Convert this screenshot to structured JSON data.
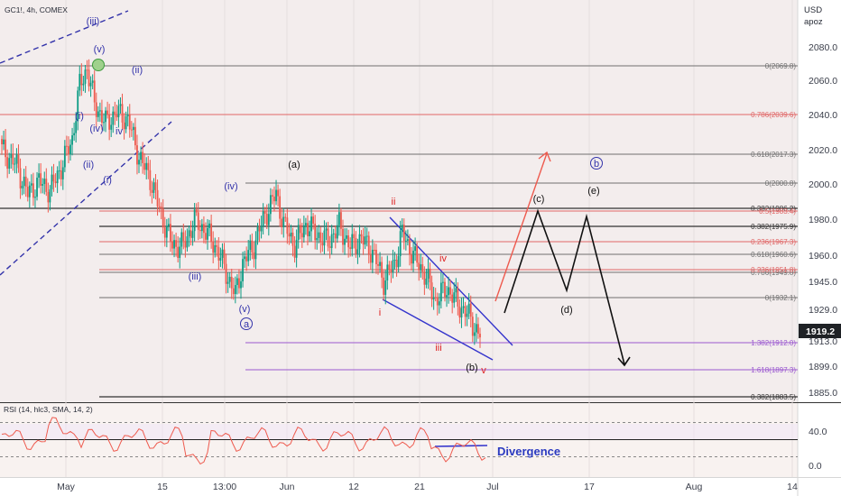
{
  "header": {
    "symbol": "GC1!, 4h, COMEX"
  },
  "scale": {
    "currency": "USD",
    "mode": "apoz"
  },
  "price_tag": {
    "value": "1919.2",
    "color": "#1f2226"
  },
  "colors": {
    "bull": "#0c9c84",
    "bear": "#ee5a4e",
    "fib_gray": "#707070",
    "fib_red": "#e06666",
    "fib_purple": "#9b59d0",
    "wave_blue": "#3333aa",
    "wave_red": "#dd2222",
    "channel": "#3333cc",
    "rsi": "#ee5a4e",
    "bg_main": "#f3eded",
    "bg_rsi": "#f8f2f0"
  },
  "chart_data": {
    "type": "candlestick",
    "title": "GC1!, 4h, COMEX",
    "price_range": [
      1878,
      2108
    ],
    "y_ticks": [
      2080.0,
      2060.0,
      2040.0,
      2020.0,
      2000.0,
      1980.0,
      1960.0,
      1945.0,
      1929.0,
      1913.0,
      1899.0,
      1885.0
    ],
    "x_ticks": [
      "May",
      "15",
      "13:00",
      "Jun",
      "12",
      "21",
      "Jul",
      "17",
      "Aug",
      "14"
    ],
    "price_series": {
      "note": "approximate 4h closes from ~Apr 25 to ~Jun 29",
      "anchors": [
        [
          0,
          2022
        ],
        [
          8,
          2013
        ],
        [
          14,
          1997
        ],
        [
          20,
          2004
        ],
        [
          26,
          1999
        ],
        [
          32,
          2012
        ],
        [
          38,
          2028
        ],
        [
          42,
          2058
        ],
        [
          46,
          2068
        ],
        [
          50,
          2048
        ],
        [
          56,
          2037
        ],
        [
          62,
          2043
        ],
        [
          68,
          2039
        ],
        [
          74,
          2018
        ],
        [
          80,
          2006
        ],
        [
          86,
          1985
        ],
        [
          92,
          1968
        ],
        [
          98,
          1968
        ],
        [
          104,
          1982
        ],
        [
          110,
          1976
        ],
        [
          116,
          1966
        ],
        [
          122,
          1950
        ],
        [
          126,
          1940
        ],
        [
          130,
          1958
        ],
        [
          136,
          1968
        ],
        [
          142,
          1985
        ],
        [
          148,
          1997
        ],
        [
          152,
          1980
        ],
        [
          158,
          1968
        ],
        [
          164,
          1980
        ],
        [
          170,
          1974
        ],
        [
          176,
          1970
        ],
        [
          182,
          1979
        ],
        [
          188,
          1967
        ],
        [
          194,
          1972
        ],
        [
          200,
          1964
        ],
        [
          206,
          1948
        ],
        [
          212,
          1958
        ],
        [
          216,
          1975
        ],
        [
          222,
          1962
        ],
        [
          228,
          1952
        ],
        [
          234,
          1937
        ],
        [
          240,
          1944
        ],
        [
          246,
          1935
        ],
        [
          252,
          1928
        ],
        [
          258,
          1916
        ]
      ]
    },
    "fib_levels": [
      {
        "label": "0(2069.8)",
        "price": 2069.8,
        "group": "gray"
      },
      {
        "label": "0.786(2039.6)",
        "price": 2039.6,
        "group": "red"
      },
      {
        "label": "0.618(2017.3)",
        "price": 2017.3,
        "group": "gray"
      },
      {
        "label": "0(2000.8)",
        "price": 2000.8,
        "group": "gray"
      },
      {
        "label": "0.382(1986.2)",
        "price": 1986.2,
        "group": "dark"
      },
      {
        "label": "0.5(1983.4)",
        "price": 1983.4,
        "group": "red"
      },
      {
        "label": "0.382(1975.9)",
        "price": 1975.9,
        "group": "dark"
      },
      {
        "label": "0.236(1967.3)",
        "price": 1967.3,
        "group": "red"
      },
      {
        "label": "0.618(1960.6)",
        "price": 1960.6,
        "group": "gray"
      },
      {
        "label": "0.786(1949.8)",
        "price": 1949.8,
        "group": "gray"
      },
      {
        "label": "0.236(1951.8)",
        "price": 1951.8,
        "group": "red"
      },
      {
        "label": "0(1932.1)",
        "price": 1932.1,
        "group": "gray"
      },
      {
        "label": "1.382(1912.0)",
        "price": 1912.0,
        "group": "purple"
      },
      {
        "label": "1.618(1897.3)",
        "price": 1897.3,
        "group": "purple"
      },
      {
        "label": "0.382(1883.5)",
        "price": 1883.5,
        "group": "dark"
      }
    ],
    "wave_labels": [
      {
        "text": "(iii)",
        "color": "blue"
      },
      {
        "text": "(v)",
        "color": "blue"
      },
      {
        "text": "(ii)",
        "color": "blue"
      },
      {
        "text": "(i)",
        "color": "blue"
      },
      {
        "text": "(iv)",
        "color": "blue"
      },
      {
        "text": "(ii)",
        "color": "blue"
      },
      {
        "text": "(i)",
        "color": "blue"
      },
      {
        "text": "iv",
        "color": "blue"
      },
      {
        "text": "(iv)",
        "color": "blue"
      },
      {
        "text": "(iii)",
        "color": "blue"
      },
      {
        "text": "(v)",
        "color": "blue"
      },
      {
        "text": "a",
        "color": "blue"
      },
      {
        "text": "(a)",
        "color": "black"
      },
      {
        "text": "ii",
        "color": "red"
      },
      {
        "text": "iv",
        "color": "red"
      },
      {
        "text": "i",
        "color": "red"
      },
      {
        "text": "iii",
        "color": "red"
      },
      {
        "text": "(b)",
        "color": "black"
      },
      {
        "text": "v",
        "color": "red"
      },
      {
        "text": "(c)",
        "color": "black"
      },
      {
        "text": "(e)",
        "color": "black"
      },
      {
        "text": "(d)",
        "color": "black"
      },
      {
        "text": "b",
        "color": "blue"
      }
    ],
    "rsi": {
      "label": "RSI (14, hlc3, SMA, 14, 2)",
      "y_ticks": [
        40.0,
        0.0
      ],
      "annotation": "Divergence"
    }
  }
}
